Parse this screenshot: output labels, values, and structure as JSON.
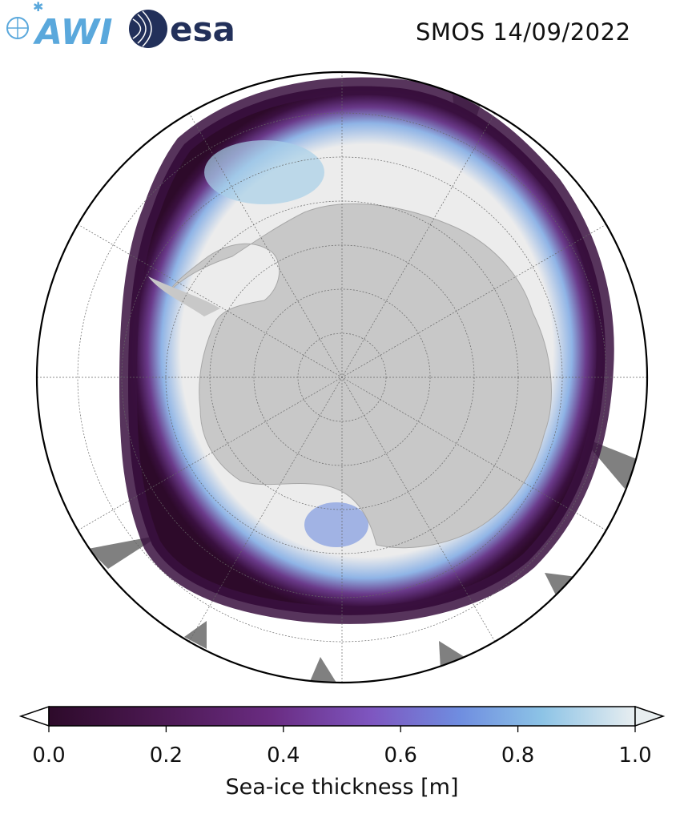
{
  "header": {
    "title": "SMOS 14/09/2022",
    "logo_awi_text": "AWI",
    "logo_esa_text": "esa"
  },
  "map": {
    "projection": "south-polar-stereographic",
    "land_color": "#c8c8c8",
    "no_data_color": "#808080",
    "graticule": "dashed"
  },
  "colorbar": {
    "label": "Sea-ice thickness [m]",
    "ticks": [
      "0.0",
      "0.2",
      "0.4",
      "0.6",
      "0.8",
      "1.0"
    ],
    "tick_values": [
      0.0,
      0.2,
      0.4,
      0.6,
      0.8,
      1.0
    ],
    "range": [
      0.0,
      1.0
    ],
    "extend": "both",
    "colors": [
      "#2d0a2a",
      "#4a1850",
      "#6a2c82",
      "#7e56c0",
      "#6f8de0",
      "#8cc3e6",
      "#e8eef0"
    ]
  }
}
